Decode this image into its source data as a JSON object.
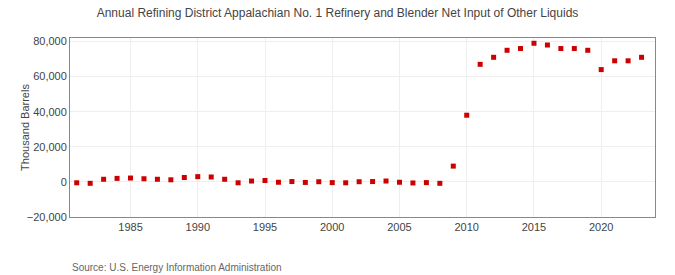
{
  "chart_data": {
    "type": "scatter",
    "title": "Annual Refining District Appalachian No. 1 Refinery and Blender Net Input of Other Liquids",
    "y_label": "Thousand Barrels",
    "annotations": [
      "Source: U.S. Energy Information Administration"
    ],
    "x": [
      1981,
      1982,
      1983,
      1984,
      1985,
      1986,
      1987,
      1988,
      1989,
      1990,
      1991,
      1992,
      1993,
      1994,
      1995,
      1996,
      1997,
      1998,
      1999,
      2000,
      2001,
      2002,
      2003,
      2004,
      2005,
      2006,
      2007,
      2008,
      2009,
      2010,
      2011,
      2012,
      2013,
      2014,
      2015,
      2016,
      2017,
      2018,
      2019,
      2020,
      2021,
      2022,
      2023
    ],
    "values": [
      -500,
      -800,
      1500,
      2000,
      2200,
      1800,
      1500,
      1200,
      2500,
      3000,
      2800,
      1500,
      -500,
      500,
      800,
      -200,
      200,
      -300,
      100,
      -400,
      -500,
      100,
      200,
      500,
      -200,
      -600,
      -400,
      -800,
      9000,
      38000,
      67000,
      71000,
      75000,
      76000,
      79000,
      78000,
      76000,
      76000,
      75000,
      64000,
      69000,
      69000,
      71000
    ],
    "color": "#cc0000",
    "marker": "square",
    "xlim": [
      1980.5,
      2024
    ],
    "xticks": [
      1985,
      1990,
      1995,
      2000,
      2005,
      2010,
      2015,
      2020
    ],
    "ylim": [
      -20000,
      82000
    ],
    "yticks": [
      {
        "value": -20000,
        "label": "−20,000"
      },
      0,
      {
        "value": 20000,
        "label": "20,000"
      },
      {
        "value": 40000,
        "label": "40,000"
      },
      {
        "value": 60000,
        "label": "60,000"
      },
      {
        "value": 80000,
        "label": "80,000"
      }
    ],
    "grid": true
  }
}
